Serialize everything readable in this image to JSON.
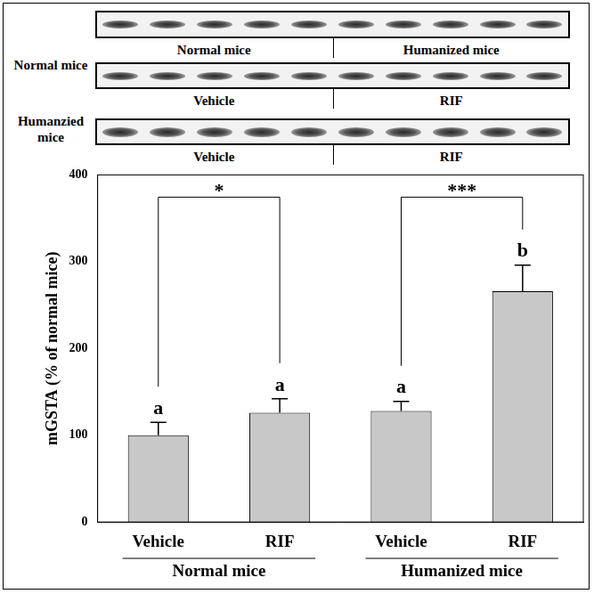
{
  "blots": [
    {
      "lane_groups": [
        "Normal mice",
        "Humanized mice"
      ]
    },
    {
      "row_label": "Normal mice",
      "lane_groups": [
        "Vehicle",
        "RIF"
      ]
    },
    {
      "row_label": "Humanzied mice",
      "lane_groups": [
        "Vehicle",
        "RIF"
      ]
    }
  ],
  "chart_data": {
    "type": "bar",
    "y_label": "mGSTA (% of normal mice)",
    "categories": [
      "Vehicle",
      "RIF",
      "Vehicle",
      "RIF"
    ],
    "groups": [
      "Normal mice",
      "Humanized mice"
    ],
    "values": [
      100,
      126,
      128,
      266
    ],
    "errors": [
      15,
      16,
      11,
      30
    ],
    "bar_letters": [
      "a",
      "a",
      "a",
      "b"
    ],
    "comparisons": [
      {
        "between": [
          0,
          1
        ],
        "text": "*"
      },
      {
        "between": [
          2,
          3
        ],
        "text": "***"
      }
    ],
    "color": "#c8c8c8",
    "ylim": [
      0,
      400
    ],
    "yticks": [
      0,
      100,
      200,
      300,
      400
    ],
    "grid": false
  }
}
